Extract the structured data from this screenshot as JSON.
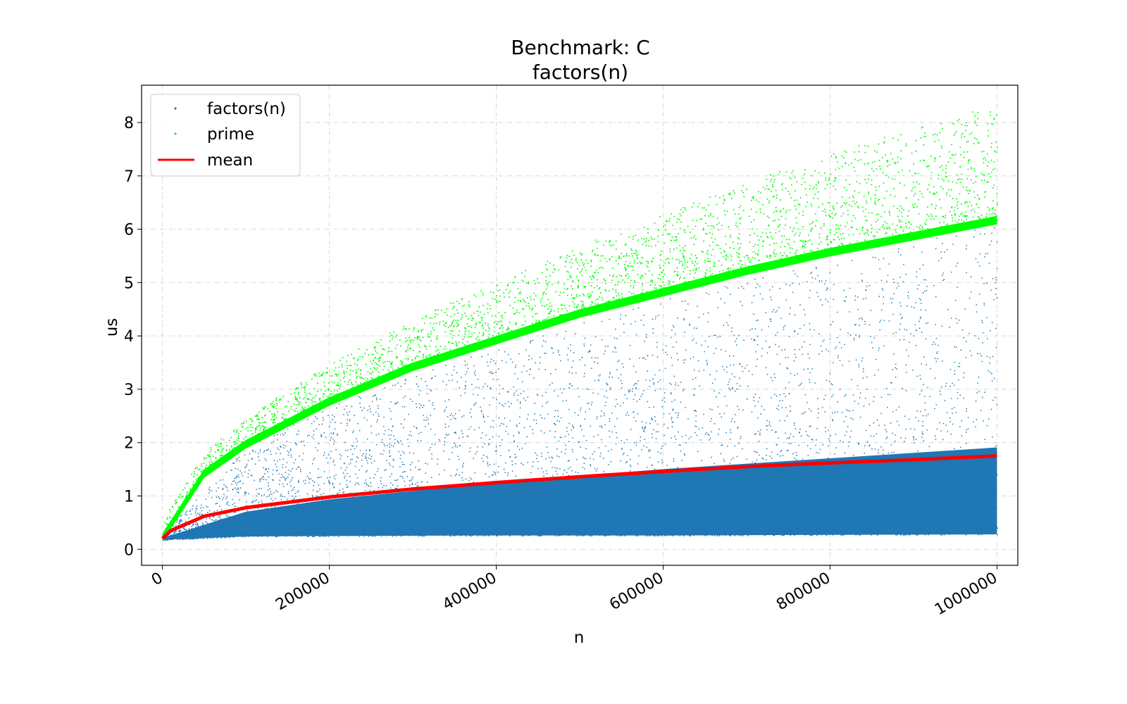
{
  "chart_data": {
    "type": "scatter",
    "title": "Benchmark: C",
    "subtitle": "factors(n)",
    "xlabel": "n",
    "ylabel": "us",
    "xlim": [
      -25000,
      1025000
    ],
    "ylim": [
      -0.3,
      8.7
    ],
    "x_ticks": [
      0,
      200000,
      400000,
      600000,
      800000,
      1000000
    ],
    "x_tick_labels": [
      "0",
      "200000",
      "400000",
      "600000",
      "800000",
      "1000000"
    ],
    "y_ticks": [
      0,
      1,
      2,
      3,
      4,
      5,
      6,
      7,
      8
    ],
    "y_tick_labels": [
      "0",
      "1",
      "2",
      "3",
      "4",
      "5",
      "6",
      "7",
      "8"
    ],
    "grid": true,
    "legend_position": "top-left",
    "series": [
      {
        "name": "factors(n)",
        "kind": "scatter",
        "color": "#1f77b4",
        "description_points": [
          {
            "x": 0,
            "y_min": 0.18,
            "y_max": 0.3
          },
          {
            "x": 100000,
            "y_min": 0.24,
            "y_max": 1.9
          },
          {
            "x": 200000,
            "y_min": 0.25,
            "y_max": 2.7
          },
          {
            "x": 400000,
            "y_min": 0.26,
            "y_max": 3.8
          },
          {
            "x": 600000,
            "y_min": 0.26,
            "y_max": 4.7
          },
          {
            "x": 800000,
            "y_min": 0.27,
            "y_max": 5.4
          },
          {
            "x": 1000000,
            "y_min": 0.28,
            "y_max": 6.1
          }
        ]
      },
      {
        "name": "prime",
        "kind": "scatter",
        "color": "#00ff00",
        "baseline_points": [
          {
            "x": 0,
            "y": 0.2
          },
          {
            "x": 50000,
            "y": 1.4
          },
          {
            "x": 100000,
            "y": 1.95
          },
          {
            "x": 200000,
            "y": 2.75
          },
          {
            "x": 300000,
            "y": 3.4
          },
          {
            "x": 400000,
            "y": 3.9
          },
          {
            "x": 500000,
            "y": 4.4
          },
          {
            "x": 600000,
            "y": 4.8
          },
          {
            "x": 700000,
            "y": 5.2
          },
          {
            "x": 800000,
            "y": 5.55
          },
          {
            "x": 900000,
            "y": 5.85
          },
          {
            "x": 1000000,
            "y": 6.15
          }
        ],
        "upper_spread_max": 8.3
      },
      {
        "name": "mean",
        "kind": "line",
        "color": "#ff0000",
        "points": [
          {
            "x": 0,
            "y": 0.2
          },
          {
            "x": 10000,
            "y": 0.35
          },
          {
            "x": 50000,
            "y": 0.62
          },
          {
            "x": 100000,
            "y": 0.78
          },
          {
            "x": 200000,
            "y": 0.98
          },
          {
            "x": 300000,
            "y": 1.13
          },
          {
            "x": 400000,
            "y": 1.25
          },
          {
            "x": 500000,
            "y": 1.36
          },
          {
            "x": 600000,
            "y": 1.46
          },
          {
            "x": 700000,
            "y": 1.55
          },
          {
            "x": 800000,
            "y": 1.62
          },
          {
            "x": 900000,
            "y": 1.68
          },
          {
            "x": 1000000,
            "y": 1.75
          }
        ]
      }
    ]
  }
}
